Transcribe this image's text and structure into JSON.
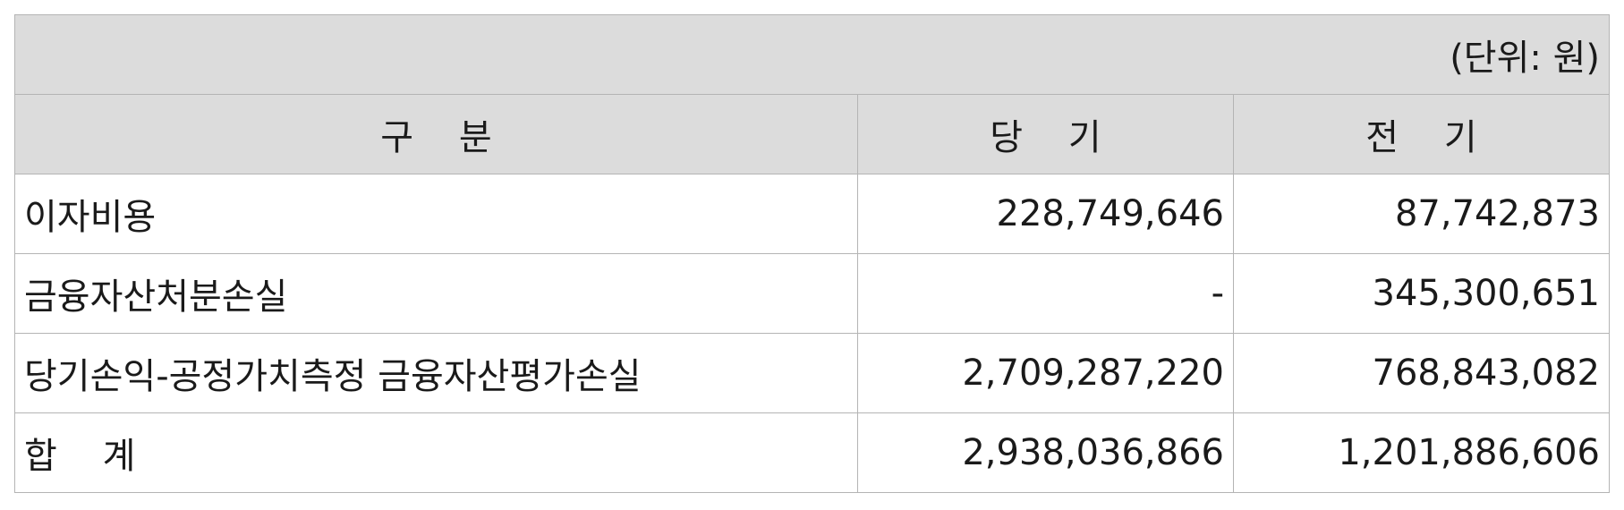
{
  "unit_label": "(단위: 원)",
  "headers": {
    "category": "구    분",
    "current": "당    기",
    "previous": "전    기"
  },
  "rows": [
    {
      "label": "이자비용",
      "current": "228,749,646",
      "previous": "87,742,873"
    },
    {
      "label": "금융자산처분손실",
      "current": "-",
      "previous": "345,300,651"
    },
    {
      "label": "당기손익-공정가치측정 금융자산평가손실",
      "current": "2,709,287,220",
      "previous": "768,843,082"
    },
    {
      "label": "합    계",
      "current": "2,938,036,866",
      "previous": "1,201,886,606"
    }
  ]
}
